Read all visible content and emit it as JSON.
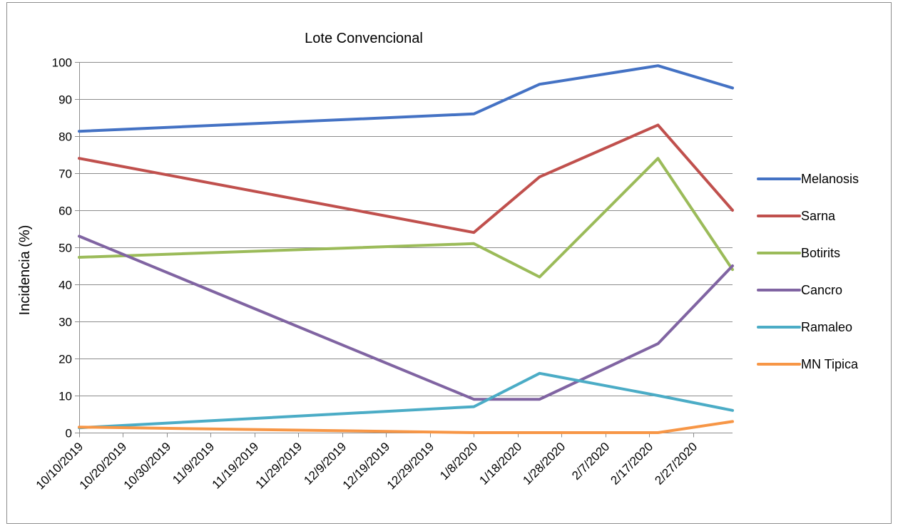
{
  "chart_data": {
    "type": "line",
    "title": "Lote Convencional",
    "ylabel": "Incidencia (%)",
    "xlabel": "",
    "ylim": [
      0,
      100
    ],
    "yticks": [
      0,
      10,
      20,
      30,
      40,
      50,
      60,
      70,
      80,
      90,
      100
    ],
    "xlim": [
      "10/10/2019",
      "3/7/2020"
    ],
    "xticks": [
      "10/10/2019",
      "10/20/2019",
      "10/30/2019",
      "11/9/2019",
      "11/19/2019",
      "11/29/2019",
      "12/9/2019",
      "12/19/2019",
      "12/29/2019",
      "1/8/2020",
      "1/18/2020",
      "1/28/2020",
      "2/7/2020",
      "2/17/2020",
      "2/27/2020"
    ],
    "grid": true,
    "legend_position": "right",
    "series": [
      {
        "name": "Melanosis",
        "color": "#4472c4",
        "points": [
          [
            "10/10/2019",
            81.3
          ],
          [
            "1/8/2020",
            86
          ],
          [
            "1/23/2020",
            94
          ],
          [
            "2/19/2020",
            99
          ],
          [
            "3/7/2020",
            93
          ]
        ]
      },
      {
        "name": "Sarna",
        "color": "#c0504d",
        "points": [
          [
            "10/10/2019",
            74
          ],
          [
            "1/8/2020",
            54
          ],
          [
            "1/23/2020",
            69
          ],
          [
            "2/19/2020",
            83
          ],
          [
            "3/7/2020",
            60
          ]
        ]
      },
      {
        "name": "Botirits",
        "color": "#9bbb59",
        "points": [
          [
            "10/10/2019",
            47.3
          ],
          [
            "1/8/2020",
            51
          ],
          [
            "1/23/2020",
            42
          ],
          [
            "2/19/2020",
            74
          ],
          [
            "3/7/2020",
            44
          ]
        ]
      },
      {
        "name": "Cancro",
        "color": "#8064a2",
        "points": [
          [
            "10/10/2019",
            53
          ],
          [
            "1/8/2020",
            9
          ],
          [
            "1/23/2020",
            9
          ],
          [
            "2/19/2020",
            24
          ],
          [
            "3/7/2020",
            45
          ]
        ]
      },
      {
        "name": "Ramaleo",
        "color": "#4bacc6",
        "points": [
          [
            "10/10/2019",
            1.3
          ],
          [
            "1/8/2020",
            7
          ],
          [
            "1/23/2020",
            16
          ],
          [
            "2/19/2020",
            10
          ],
          [
            "3/7/2020",
            6
          ]
        ]
      },
      {
        "name": "MN Tipica",
        "color": "#f79646",
        "points": [
          [
            "10/10/2019",
            1.5
          ],
          [
            "1/8/2020",
            0
          ],
          [
            "1/23/2020",
            0
          ],
          [
            "2/19/2020",
            0
          ],
          [
            "3/7/2020",
            3
          ]
        ]
      }
    ]
  }
}
